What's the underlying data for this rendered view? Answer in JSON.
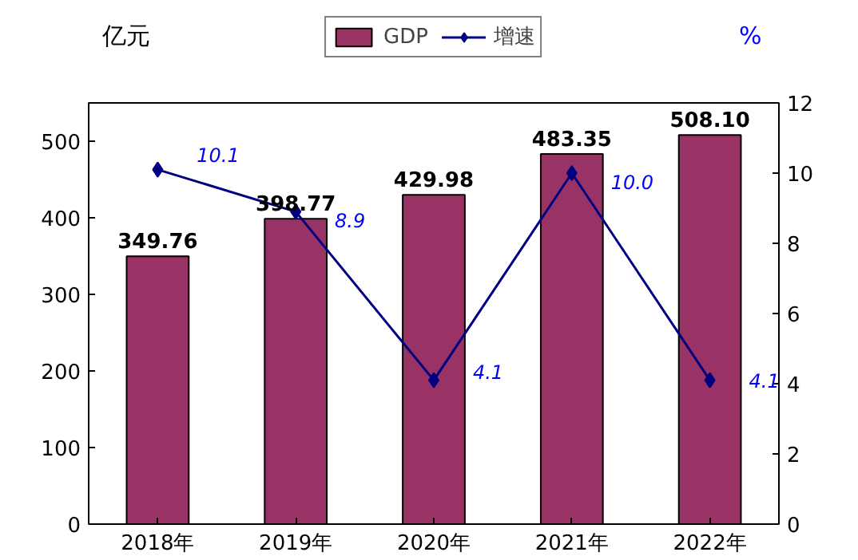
{
  "chart_data": {
    "type": "bar",
    "ylabel": "亿元",
    "y2label": "%",
    "categories": [
      "2018年",
      "2019年",
      "2020年",
      "2021年",
      "2022年"
    ],
    "series": [
      {
        "name": "GDP",
        "color": "#993366",
        "values": [
          349.76,
          398.77,
          429.98,
          483.35,
          508.1
        ],
        "value_labels": [
          "349.76",
          "398.77",
          "429.98",
          "483.35",
          "508.10"
        ]
      },
      {
        "name": "增速",
        "type": "line",
        "axis": "y2",
        "color": "#000080",
        "marker": "diamond",
        "values": [
          10.1,
          8.9,
          4.1,
          10.0,
          4.1
        ],
        "value_labels": [
          "10.1",
          "8.9",
          "4.1",
          "10.0",
          "4.1"
        ]
      }
    ],
    "ylim": [
      0,
      550
    ],
    "yticks": [
      0,
      100,
      200,
      300,
      400,
      500
    ],
    "y2lim": [
      0,
      12
    ],
    "y2ticks": [
      0,
      2,
      4,
      6,
      8,
      10,
      12
    ],
    "legend": "top"
  }
}
